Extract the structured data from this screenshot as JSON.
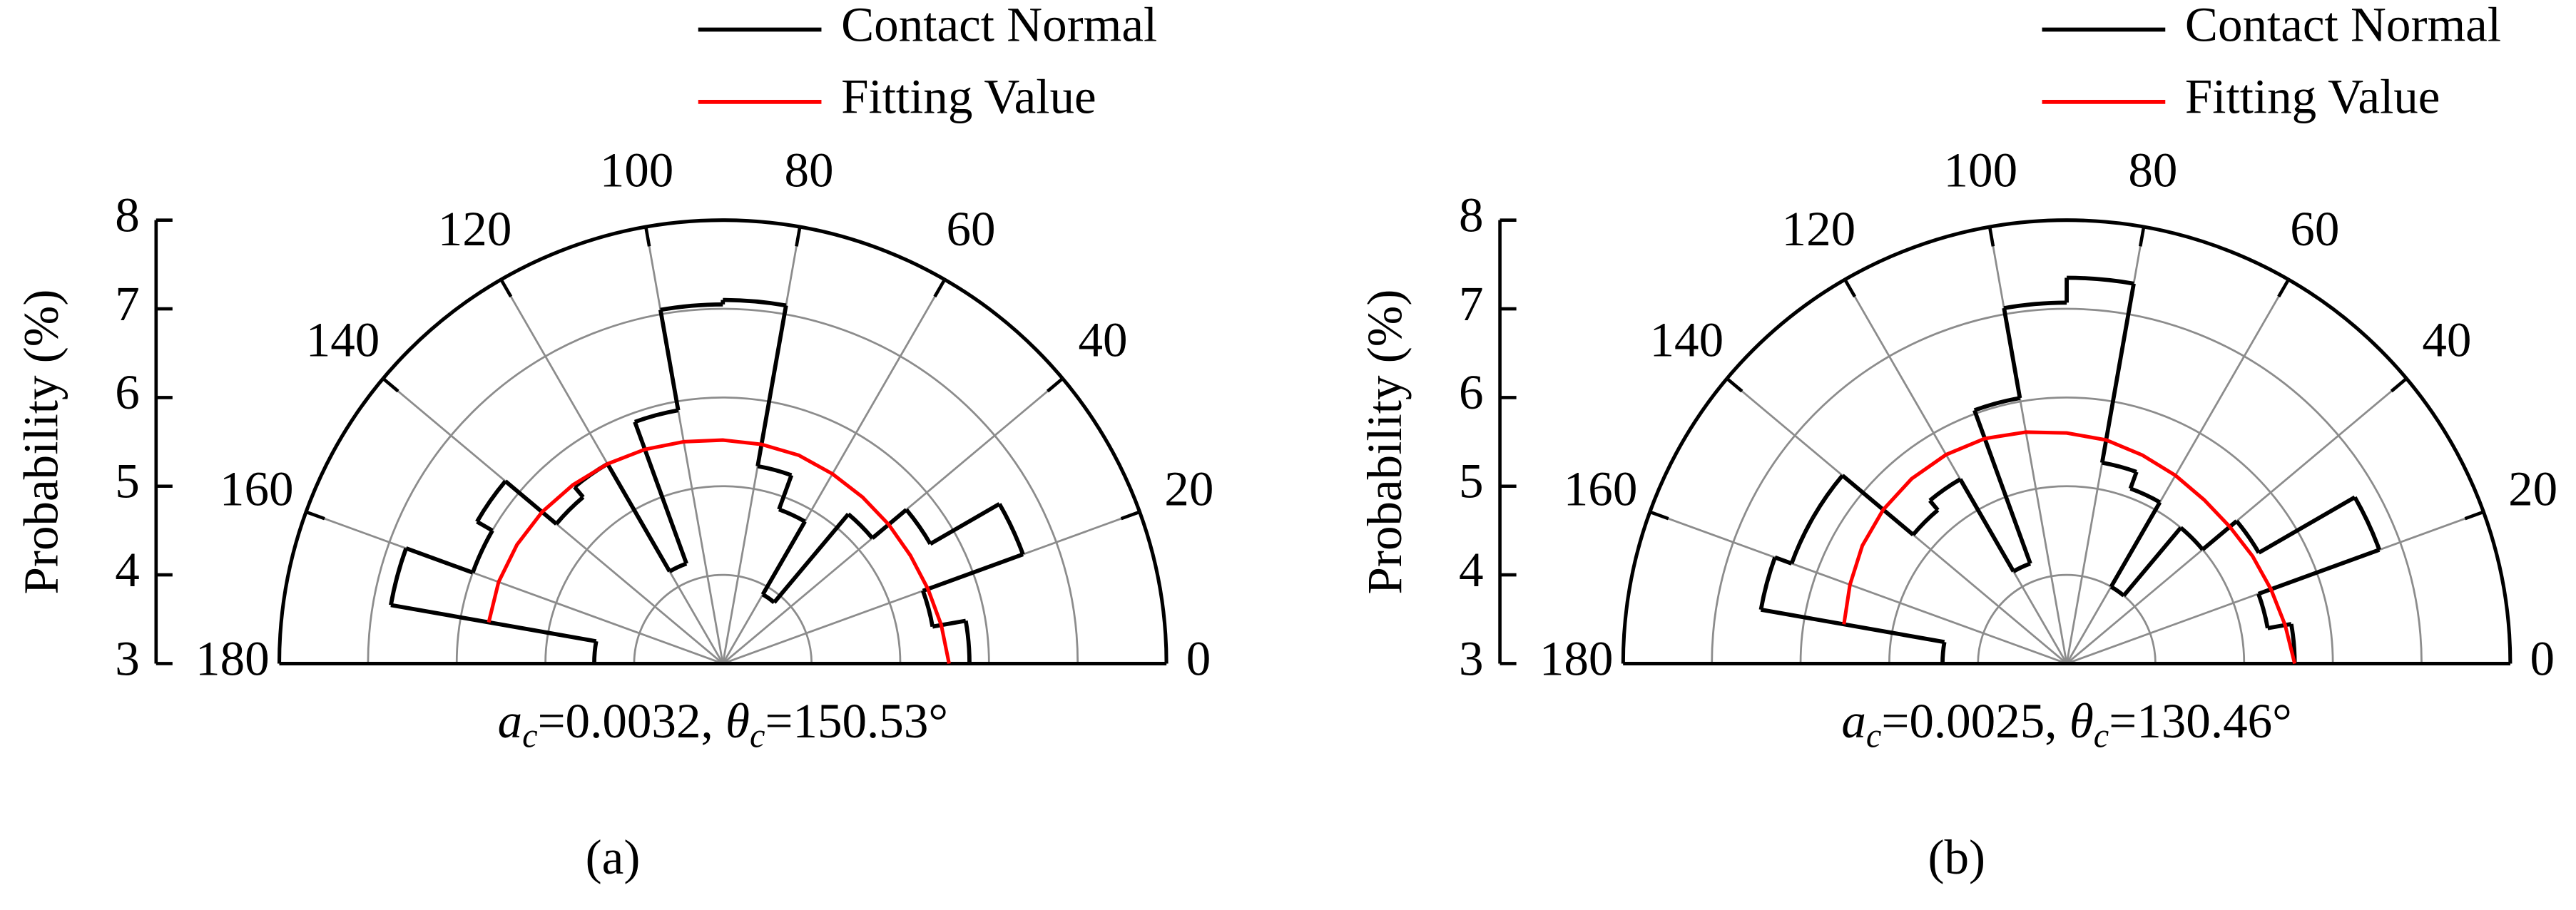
{
  "chart_data": [
    {
      "type": "polar-rose",
      "ylabel": "Probability (%)",
      "rlim": [
        3,
        8
      ],
      "rticks": [
        3,
        4,
        5,
        6,
        7,
        8
      ],
      "xlim": [
        0,
        180
      ],
      "xticks": [
        0,
        20,
        40,
        60,
        80,
        100,
        120,
        140,
        160,
        180
      ],
      "grid": true,
      "series": [
        {
          "name": "Contact Normal",
          "color": "#000000",
          "bins": [
            0,
            10,
            20,
            30,
            40,
            50,
            60,
            70,
            80,
            90,
            100,
            110,
            120,
            130,
            140,
            150,
            160,
            170,
            180
          ],
          "values": [
            5.78,
            5.4,
            6.6,
            5.7,
            5.2,
            3.9,
            4.85,
            5.26,
            7.1,
            7.05,
            5.9,
            4.2,
            5.6,
            5.45,
            6.2,
            6.0,
            6.8,
            4.45
          ]
        },
        {
          "name": "Fitting Value",
          "color": "#ff0000",
          "x": [
            0,
            10,
            20,
            30,
            40,
            50,
            60,
            70,
            80,
            90,
            100,
            110,
            120,
            130,
            140,
            150,
            160,
            170
          ],
          "values": [
            5.55,
            5.5,
            5.46,
            5.44,
            5.44,
            5.45,
            5.47,
            5.5,
            5.51,
            5.52,
            5.54,
            5.57,
            5.6,
            5.63,
            5.66,
            5.68,
            5.69,
            5.68
          ]
        }
      ],
      "annotation": [
        "a",
        "c",
        "=0.0032, ",
        "θ",
        "c",
        "=150.53°"
      ],
      "panel_label": "(a)"
    },
    {
      "type": "polar-rose",
      "ylabel": "Probability (%)",
      "rlim": [
        3,
        8
      ],
      "rticks": [
        3,
        4,
        5,
        6,
        7,
        8
      ],
      "xlim": [
        0,
        180
      ],
      "xticks": [
        0,
        20,
        40,
        60,
        80,
        100,
        120,
        140,
        160,
        180
      ],
      "grid": true,
      "series": [
        {
          "name": "Contact Normal",
          "color": "#000000",
          "bins": [
            0,
            10,
            20,
            30,
            40,
            50,
            60,
            70,
            80,
            90,
            100,
            110,
            120,
            130,
            140,
            150,
            160,
            170,
            180
          ],
          "values": [
            5.57,
            5.3,
            6.75,
            5.5,
            5.0,
            4.0,
            5.1,
            5.3,
            7.35,
            7.07,
            6.04,
            4.2,
            5.4,
            5.26,
            6.3,
            6.3,
            6.5,
            4.4
          ]
        },
        {
          "name": "Fitting Value",
          "color": "#ff0000",
          "x": [
            0,
            10,
            20,
            30,
            40,
            50,
            60,
            70,
            80,
            90,
            100,
            110,
            120,
            130,
            140,
            150,
            160,
            170
          ],
          "values": [
            5.57,
            5.5,
            5.45,
            5.42,
            5.4,
            5.41,
            5.45,
            5.5,
            5.56,
            5.6,
            5.65,
            5.7,
            5.72,
            5.72,
            5.7,
            5.66,
            5.6,
            5.55
          ]
        }
      ],
      "annotation": [
        "a",
        "c",
        "=0.0025, ",
        "θ",
        "c",
        "=130.46°"
      ],
      "panel_label": "(b)"
    }
  ]
}
